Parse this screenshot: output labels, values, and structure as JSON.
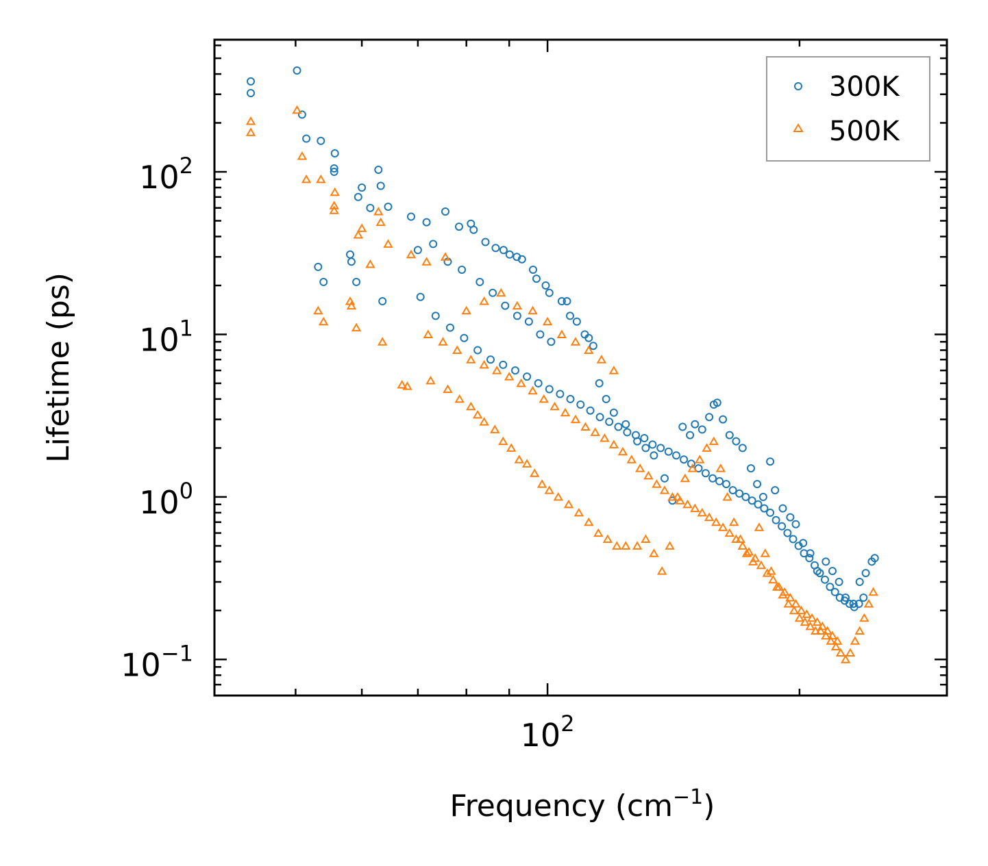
{
  "chart_data": {
    "type": "scatter",
    "x_scale": "log",
    "y_scale": "log",
    "xlim": [
      40,
      300
    ],
    "ylim": [
      0.06,
      650
    ],
    "xlabel": "Frequency (cm",
    "xlabel_sup": "−1",
    "xlabel_suffix": ")",
    "ylabel": "Lifetime (ps)",
    "x_ticks": [
      {
        "value": 100,
        "base": "10",
        "exp": "2"
      }
    ],
    "y_ticks": [
      {
        "value": 0.1,
        "base": "10",
        "exp": "−1"
      },
      {
        "value": 1,
        "base": "10",
        "exp": "0"
      },
      {
        "value": 10,
        "base": "10",
        "exp": "1"
      },
      {
        "value": 100,
        "base": "10",
        "exp": "2"
      }
    ],
    "grid": false,
    "legend_position": "top-right",
    "series": [
      {
        "name": "300K",
        "marker": "circle",
        "color": "#1f77b4",
        "points": [
          [
            44.2,
            360
          ],
          [
            44.2,
            305
          ],
          [
            50.2,
            420
          ],
          [
            50.9,
            225
          ],
          [
            51.5,
            160
          ],
          [
            53.6,
            155
          ],
          [
            55.7,
            130
          ],
          [
            55.6,
            105
          ],
          [
            55.6,
            100
          ],
          [
            62.8,
            103
          ],
          [
            60.0,
            80
          ],
          [
            59.4,
            70
          ],
          [
            58.1,
            31
          ],
          [
            58.3,
            28
          ],
          [
            59.1,
            21
          ],
          [
            54.0,
            21
          ],
          [
            53.2,
            26
          ],
          [
            63.5,
            16
          ],
          [
            61.4,
            60
          ],
          [
            63.2,
            82
          ],
          [
            64.5,
            61
          ],
          [
            68.7,
            53
          ],
          [
            71.7,
            49
          ],
          [
            75.5,
            57
          ],
          [
            78.4,
            46
          ],
          [
            81.0,
            48
          ],
          [
            81.6,
            44
          ],
          [
            84.3,
            37
          ],
          [
            86.7,
            34
          ],
          [
            88.6,
            33
          ],
          [
            90.1,
            31
          ],
          [
            91.9,
            30
          ],
          [
            93.2,
            29
          ],
          [
            96.1,
            25
          ],
          [
            97.0,
            22
          ],
          [
            99.5,
            20
          ],
          [
            100.5,
            18
          ],
          [
            104.0,
            16
          ],
          [
            105.5,
            16
          ],
          [
            106.4,
            13
          ],
          [
            108.4,
            12
          ],
          [
            110.8,
            10
          ],
          [
            112.0,
            9.5
          ],
          [
            113.4,
            8.5
          ],
          [
            115.3,
            5.0
          ],
          [
            117.5,
            4.0
          ],
          [
            120.0,
            3.3
          ],
          [
            124.0,
            2.8
          ],
          [
            128.0,
            2.2
          ],
          [
            131.0,
            2.0
          ],
          [
            134.0,
            1.8
          ],
          [
            138.0,
            1.3
          ],
          [
            141.0,
            0.95
          ],
          [
            145.0,
            2.7
          ],
          [
            148.0,
            2.4
          ],
          [
            150.0,
            2.8
          ],
          [
            153.0,
            2.6
          ],
          [
            156.0,
            3.1
          ],
          [
            158.0,
            3.7
          ],
          [
            159.5,
            3.8
          ],
          [
            162.0,
            3.0
          ],
          [
            165.0,
            2.4
          ],
          [
            168.0,
            2.2
          ],
          [
            171.0,
            2.0
          ],
          [
            175.0,
            1.5
          ],
          [
            178.0,
            1.2
          ],
          [
            181.0,
            1.0
          ],
          [
            184.5,
            1.65
          ],
          [
            187.0,
            1.1
          ],
          [
            191.0,
            0.85
          ],
          [
            195.0,
            0.75
          ],
          [
            198.0,
            0.68
          ],
          [
            202.0,
            0.52
          ],
          [
            206.0,
            0.45
          ],
          [
            210.0,
            0.35
          ],
          [
            215.0,
            0.4
          ],
          [
            219.0,
            0.35
          ],
          [
            223.0,
            0.3
          ],
          [
            227.0,
            0.24
          ],
          [
            232.0,
            0.22
          ],
          [
            236.0,
            0.3
          ],
          [
            240.0,
            0.34
          ],
          [
            244.0,
            0.4
          ],
          [
            246.0,
            0.42
          ],
          [
            70.0,
            33
          ],
          [
            73.0,
            36
          ],
          [
            76.0,
            28
          ],
          [
            79.0,
            25
          ],
          [
            83.0,
            21
          ],
          [
            86.0,
            18
          ],
          [
            89.0,
            15
          ],
          [
            92.0,
            13
          ],
          [
            95.0,
            12
          ],
          [
            98.0,
            10
          ],
          [
            101.0,
            9
          ],
          [
            70.5,
            17
          ],
          [
            73.5,
            13
          ],
          [
            76.5,
            11
          ],
          [
            79.5,
            9.5
          ],
          [
            82.5,
            8.0
          ],
          [
            85.5,
            7.0
          ],
          [
            88.5,
            6.5
          ],
          [
            91.5,
            6.0
          ],
          [
            94.5,
            5.5
          ],
          [
            97.5,
            5.0
          ],
          [
            100.5,
            4.6
          ],
          [
            103.5,
            4.3
          ],
          [
            106.5,
            4.0
          ],
          [
            109.5,
            3.7
          ],
          [
            112.5,
            3.4
          ],
          [
            115.5,
            3.1
          ],
          [
            118.5,
            2.9
          ],
          [
            121.5,
            2.7
          ],
          [
            124.5,
            2.5
          ],
          [
            127.5,
            2.4
          ],
          [
            130.5,
            2.3
          ],
          [
            133.5,
            2.1
          ],
          [
            136.5,
            2.0
          ],
          [
            139.5,
            1.9
          ],
          [
            142.5,
            1.8
          ],
          [
            145.5,
            1.7
          ],
          [
            148.5,
            1.6
          ],
          [
            151.5,
            1.5
          ],
          [
            154.5,
            1.4
          ],
          [
            157.5,
            1.3
          ],
          [
            160.5,
            1.25
          ],
          [
            163.5,
            1.2
          ],
          [
            166.5,
            1.1
          ],
          [
            169.5,
            1.05
          ],
          [
            172.5,
            1.0
          ],
          [
            175.5,
            0.95
          ],
          [
            178.5,
            0.9
          ],
          [
            181.5,
            0.85
          ],
          [
            184.5,
            0.8
          ],
          [
            187.5,
            0.72
          ],
          [
            190.5,
            0.66
          ],
          [
            193.5,
            0.6
          ],
          [
            196.5,
            0.55
          ],
          [
            199.5,
            0.5
          ],
          [
            202.5,
            0.45
          ],
          [
            205.5,
            0.42
          ],
          [
            208.5,
            0.38
          ],
          [
            211.5,
            0.34
          ],
          [
            214.5,
            0.31
          ],
          [
            217.5,
            0.28
          ],
          [
            220.5,
            0.26
          ],
          [
            223.5,
            0.24
          ],
          [
            226.5,
            0.23
          ],
          [
            229.5,
            0.22
          ],
          [
            232.5,
            0.21
          ],
          [
            235.5,
            0.22
          ],
          [
            238.5,
            0.24
          ]
        ]
      },
      {
        "name": "500K",
        "marker": "triangle",
        "color": "#ff7f0e",
        "points": [
          [
            44.2,
            205
          ],
          [
            44.2,
            175
          ],
          [
            50.2,
            240
          ],
          [
            50.9,
            125
          ],
          [
            51.5,
            90
          ],
          [
            53.6,
            90
          ],
          [
            55.7,
            75
          ],
          [
            55.6,
            62
          ],
          [
            55.6,
            58
          ],
          [
            58.1,
            16
          ],
          [
            58.3,
            15
          ],
          [
            59.1,
            11
          ],
          [
            54.0,
            12
          ],
          [
            53.2,
            14
          ],
          [
            59.4,
            41
          ],
          [
            60.0,
            45
          ],
          [
            62.8,
            57
          ],
          [
            63.5,
            9.0
          ],
          [
            61.4,
            27
          ],
          [
            63.2,
            49
          ],
          [
            64.5,
            36
          ],
          [
            68.7,
            31
          ],
          [
            71.7,
            28
          ],
          [
            75.5,
            30
          ],
          [
            67.0,
            4.9
          ],
          [
            68.0,
            4.8
          ],
          [
            72.5,
            5.2
          ],
          [
            76.0,
            4.6
          ],
          [
            78.5,
            4.0
          ],
          [
            81.0,
            3.6
          ],
          [
            82.5,
            3.2
          ],
          [
            84.0,
            2.9
          ],
          [
            86.5,
            2.6
          ],
          [
            88.5,
            2.2
          ],
          [
            90.5,
            2.0
          ],
          [
            92.5,
            1.7
          ],
          [
            94.5,
            1.6
          ],
          [
            96.5,
            1.4
          ],
          [
            98.5,
            1.2
          ],
          [
            100.5,
            1.1
          ],
          [
            103.0,
            1.0
          ],
          [
            106.0,
            0.9
          ],
          [
            109.0,
            0.8
          ],
          [
            112.0,
            0.7
          ],
          [
            115.0,
            0.6
          ],
          [
            118.0,
            0.55
          ],
          [
            121.0,
            0.5
          ],
          [
            124.0,
            0.5
          ],
          [
            128.0,
            0.5
          ],
          [
            131.0,
            0.55
          ],
          [
            134.0,
            0.45
          ],
          [
            137.0,
            0.35
          ],
          [
            140.0,
            0.5
          ],
          [
            143.0,
            1.0
          ],
          [
            146.0,
            1.3
          ],
          [
            149.0,
            1.5
          ],
          [
            152.0,
            1.7
          ],
          [
            155.0,
            2.0
          ],
          [
            158.0,
            2.2
          ],
          [
            161.0,
            1.5
          ],
          [
            164.0,
            1.0
          ],
          [
            167.0,
            0.7
          ],
          [
            170.0,
            0.55
          ],
          [
            173.0,
            0.45
          ],
          [
            176.0,
            0.4
          ],
          [
            179.0,
            0.65
          ],
          [
            182.0,
            0.45
          ],
          [
            185.0,
            0.35
          ],
          [
            188.0,
            0.28
          ],
          [
            191.0,
            0.25
          ],
          [
            194.0,
            0.22
          ],
          [
            197.0,
            0.2
          ],
          [
            200.0,
            0.18
          ],
          [
            203.0,
            0.17
          ],
          [
            206.0,
            0.16
          ],
          [
            209.0,
            0.15
          ],
          [
            212.0,
            0.15
          ],
          [
            215.0,
            0.14
          ],
          [
            218.0,
            0.13
          ],
          [
            221.0,
            0.12
          ],
          [
            224.0,
            0.11
          ],
          [
            227.0,
            0.1
          ],
          [
            230.0,
            0.11
          ],
          [
            233.0,
            0.13
          ],
          [
            236.0,
            0.15
          ],
          [
            239.0,
            0.18
          ],
          [
            242.0,
            0.22
          ],
          [
            245.0,
            0.26
          ],
          [
            80.0,
            14
          ],
          [
            84.0,
            16
          ],
          [
            88.0,
            18
          ],
          [
            92.0,
            15
          ],
          [
            96.0,
            14
          ],
          [
            100.0,
            12
          ],
          [
            104.0,
            10
          ],
          [
            108.0,
            9.0
          ],
          [
            112.0,
            8.0
          ],
          [
            116.0,
            7.0
          ],
          [
            120.0,
            6.0
          ],
          [
            72.0,
            10
          ],
          [
            75.0,
            9
          ],
          [
            78.0,
            8
          ],
          [
            81.0,
            7
          ],
          [
            84.0,
            6.5
          ],
          [
            87.0,
            6.0
          ],
          [
            90.0,
            5.5
          ],
          [
            93.0,
            5.0
          ],
          [
            96.0,
            4.5
          ],
          [
            99.0,
            4.0
          ],
          [
            102.0,
            3.6
          ],
          [
            105.0,
            3.3
          ],
          [
            108.0,
            3.0
          ],
          [
            111.0,
            2.7
          ],
          [
            114.0,
            2.5
          ],
          [
            117.0,
            2.3
          ],
          [
            120.0,
            2.1
          ],
          [
            123.0,
            1.9
          ],
          [
            126.0,
            1.7
          ],
          [
            129.0,
            1.5
          ],
          [
            132.0,
            1.35
          ],
          [
            135.0,
            1.2
          ],
          [
            138.0,
            1.1
          ],
          [
            141.0,
            1.0
          ],
          [
            144.0,
            0.95
          ],
          [
            147.0,
            0.9
          ],
          [
            150.0,
            0.85
          ],
          [
            153.0,
            0.8
          ],
          [
            156.0,
            0.75
          ],
          [
            159.0,
            0.7
          ],
          [
            162.0,
            0.65
          ],
          [
            165.0,
            0.6
          ],
          [
            168.0,
            0.55
          ],
          [
            171.0,
            0.5
          ],
          [
            174.0,
            0.46
          ],
          [
            177.0,
            0.42
          ],
          [
            180.0,
            0.38
          ],
          [
            183.0,
            0.34
          ],
          [
            186.0,
            0.31
          ],
          [
            189.0,
            0.28
          ],
          [
            192.0,
            0.26
          ],
          [
            195.0,
            0.24
          ],
          [
            198.0,
            0.22
          ],
          [
            201.0,
            0.2
          ],
          [
            204.0,
            0.19
          ],
          [
            207.0,
            0.18
          ],
          [
            210.0,
            0.17
          ],
          [
            213.0,
            0.16
          ],
          [
            216.0,
            0.15
          ],
          [
            219.0,
            0.14
          ],
          [
            222.0,
            0.13
          ]
        ]
      }
    ]
  },
  "legend": {
    "items": [
      {
        "label": "300K",
        "marker": "circle",
        "color": "#1f77b4"
      },
      {
        "label": "500K",
        "marker": "triangle",
        "color": "#ff7f0e"
      }
    ]
  }
}
